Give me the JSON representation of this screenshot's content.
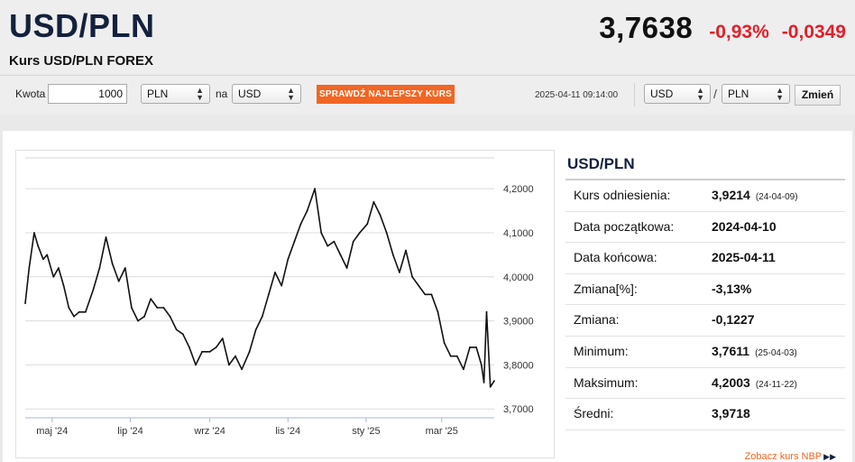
{
  "header": {
    "title": "USD/PLN",
    "subtitle": "Kurs USD/PLN FOREX",
    "price": "3,7638",
    "change_pct": "-0,93%",
    "change_abs": "-0,0349"
  },
  "converter": {
    "amount_label": "Kwota",
    "amount_value": "1000",
    "from_currency": "PLN",
    "to_label": "na",
    "to_currency": "USD",
    "best_rate_button": "SPRAWDŹ NAJLEPSZY KURS",
    "timestamp": "2025-04-11 09:14:00",
    "pair_base": "USD",
    "pair_separator": "/",
    "pair_quote": "PLN",
    "change_button": "Zmień"
  },
  "info": {
    "title": "USD/PLN",
    "rows": [
      {
        "label": "Kurs odniesienia:",
        "value": "3,9214",
        "date": "(24-04-09)"
      },
      {
        "label": "Data początkowa:",
        "value": "2024-04-10",
        "date": ""
      },
      {
        "label": "Data końcowa:",
        "value": "2025-04-11",
        "date": ""
      },
      {
        "label": "Zmiana[%]:",
        "value": "-3,13%",
        "date": ""
      },
      {
        "label": "Zmiana:",
        "value": "-0,1227",
        "date": ""
      },
      {
        "label": "Minimum:",
        "value": "3,7611",
        "date": "(25-04-03)"
      },
      {
        "label": "Maksimum:",
        "value": "4,2003",
        "date": "(24-11-22)"
      },
      {
        "label": "Średni:",
        "value": "3,9718",
        "date": ""
      }
    ],
    "nbp_link": "Zobacz kurs NBP"
  },
  "colors": {
    "accent": "#f26522",
    "negative": "#e0202b",
    "navy": "#14213d"
  },
  "chart_data": {
    "type": "line",
    "title": "",
    "xlabel": "",
    "ylabel": "",
    "ylim": [
      3.68,
      4.27
    ],
    "yticks": [
      "4,2000",
      "4,1000",
      "4,0000",
      "3,9000",
      "3,8000",
      "3,7000"
    ],
    "ytick_values": [
      4.2,
      4.1,
      4.0,
      3.9,
      3.8,
      3.7
    ],
    "xticks": [
      "maj '24",
      "lip '24",
      "wrz '24",
      "lis '24",
      "sty '25",
      "mar '25"
    ],
    "xtick_dates": [
      "2024-05-01",
      "2024-07-01",
      "2024-09-01",
      "2024-11-01",
      "2025-01-01",
      "2025-03-01"
    ],
    "x_range": [
      "2024-04-10",
      "2025-04-11"
    ],
    "grid": true,
    "series": [
      {
        "x": [
          "2024-04-10",
          "2024-04-13",
          "2024-04-17",
          "2024-04-20",
          "2024-04-24",
          "2024-04-27",
          "2024-05-02",
          "2024-05-06",
          "2024-05-10",
          "2024-05-14",
          "2024-05-18",
          "2024-05-22",
          "2024-05-27",
          "2024-06-02",
          "2024-06-07",
          "2024-06-12",
          "2024-06-17",
          "2024-06-22",
          "2024-06-27",
          "2024-07-02",
          "2024-07-07",
          "2024-07-12",
          "2024-07-17",
          "2024-07-22",
          "2024-07-27",
          "2024-08-01",
          "2024-08-06",
          "2024-08-11",
          "2024-08-16",
          "2024-08-21",
          "2024-08-26",
          "2024-09-01",
          "2024-09-06",
          "2024-09-11",
          "2024-09-16",
          "2024-09-21",
          "2024-09-26",
          "2024-10-02",
          "2024-10-07",
          "2024-10-12",
          "2024-10-17",
          "2024-10-22",
          "2024-10-27",
          "2024-11-01",
          "2024-11-06",
          "2024-11-11",
          "2024-11-16",
          "2024-11-22",
          "2024-11-27",
          "2024-12-02",
          "2024-12-07",
          "2024-12-12",
          "2024-12-17",
          "2024-12-22",
          "2024-12-27",
          "2025-01-02",
          "2025-01-07",
          "2025-01-12",
          "2025-01-17",
          "2025-01-22",
          "2025-01-27",
          "2025-02-01",
          "2025-02-06",
          "2025-02-11",
          "2025-02-16",
          "2025-02-21",
          "2025-02-26",
          "2025-03-03",
          "2025-03-08",
          "2025-03-13",
          "2025-03-18",
          "2025-03-23",
          "2025-03-28",
          "2025-04-01",
          "2025-04-03",
          "2025-04-05",
          "2025-04-08",
          "2025-04-11"
        ],
        "values": [
          3.94,
          4.02,
          4.1,
          4.07,
          4.04,
          4.05,
          4.0,
          4.02,
          3.98,
          3.93,
          3.91,
          3.92,
          3.92,
          3.97,
          4.02,
          4.09,
          4.03,
          3.99,
          4.02,
          3.93,
          3.9,
          3.91,
          3.95,
          3.93,
          3.93,
          3.91,
          3.88,
          3.87,
          3.84,
          3.8,
          3.83,
          3.83,
          3.84,
          3.86,
          3.8,
          3.82,
          3.79,
          3.83,
          3.88,
          3.91,
          3.96,
          4.01,
          3.98,
          4.04,
          4.08,
          4.12,
          4.15,
          4.2,
          4.1,
          4.07,
          4.08,
          4.05,
          4.02,
          4.08,
          4.1,
          4.12,
          4.17,
          4.14,
          4.1,
          4.05,
          4.01,
          4.06,
          4.0,
          3.98,
          3.96,
          3.96,
          3.92,
          3.85,
          3.82,
          3.82,
          3.79,
          3.84,
          3.84,
          3.8,
          3.76,
          3.92,
          3.75,
          3.7638
        ]
      }
    ]
  }
}
